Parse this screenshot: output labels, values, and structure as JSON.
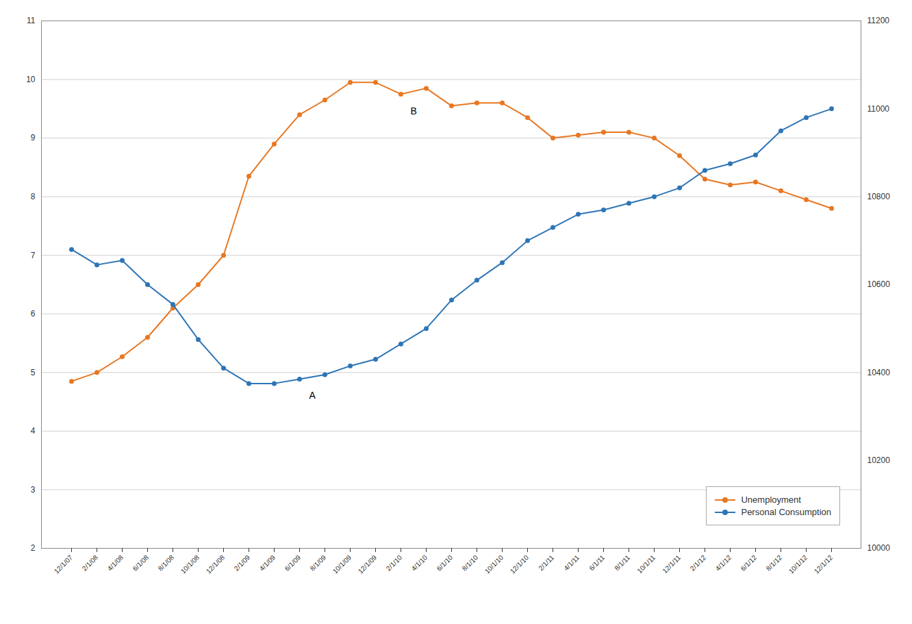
{
  "chart_data": {
    "type": "line",
    "categories": [
      "12/1/07",
      "2/1/08",
      "4/1/08",
      "6/1/08",
      "8/1/08",
      "10/1/08",
      "12/1/08",
      "2/1/09",
      "4/1/09",
      "6/1/09",
      "8/1/09",
      "10/1/09",
      "12/1/09",
      "2/1/10",
      "4/1/10",
      "6/1/10",
      "8/1/10",
      "10/1/10",
      "12/1/10",
      "2/1/11",
      "4/1/11",
      "6/1/11",
      "8/1/11",
      "10/1/11",
      "12/1/11",
      "2/1/12",
      "4/1/12",
      "6/1/12",
      "8/1/12",
      "10/1/12",
      "12/1/12"
    ],
    "series": [
      {
        "name": "Unemployment",
        "color": "#E87722",
        "marker": "circle",
        "values": [
          4.85,
          5.0,
          5.27,
          5.6,
          6.1,
          6.5,
          7.0,
          8.35,
          8.9,
          9.4,
          9.65,
          9.95,
          9.95,
          9.75,
          9.85,
          9.55,
          9.6,
          9.6,
          9.35,
          9.0,
          9.05,
          9.1,
          9.1,
          9.0,
          8.7,
          8.3,
          8.2,
          8.25,
          8.1,
          7.95,
          7.8
        ]
      },
      {
        "name": "Personal Consumption",
        "color": "#2E75B6",
        "marker": "circle",
        "axis": "y2",
        "values": [
          10680,
          10645,
          10655,
          10600,
          10555,
          10475,
          10410,
          10375,
          10375,
          10385,
          10395,
          10415,
          10430,
          10465,
          10500,
          10565,
          10610,
          10650,
          10700,
          10730,
          10760,
          10770,
          10785,
          10800,
          10820,
          10860,
          10875,
          10895,
          10950,
          10980,
          11000
        ]
      }
    ],
    "ylim": [
      2,
      11
    ],
    "yticks": [
      2,
      3,
      4,
      5,
      6,
      7,
      8,
      9,
      10,
      11
    ],
    "y2lim": [
      10000,
      11200
    ],
    "y2ticks": [
      10000,
      10200,
      10400,
      10600,
      10800,
      11000,
      11200
    ],
    "annotations": [
      {
        "text": "A",
        "x": "6/1/09",
        "y": 4.55
      },
      {
        "text": "B",
        "x": "2/1/10",
        "y": 9.4
      }
    ],
    "grid": true,
    "legend": "lower right"
  }
}
